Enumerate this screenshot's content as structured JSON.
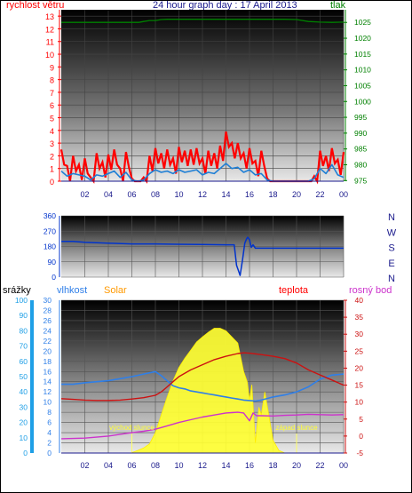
{
  "colors": {
    "wind_speed": "#ff0000",
    "wind_gust_avg": "#1e7fd6",
    "pressure": "#008000",
    "direction": "#0033cc",
    "rain": "#1e9fe6",
    "humidity": "#2f7fe8",
    "solar": "#ffff33",
    "temperature": "#cc1111",
    "dewpoint": "#cc33cc",
    "solar_label": "#ff9900",
    "title": "#1a1a8c"
  },
  "chart_data": [
    {
      "type": "line",
      "title": "24 hour graph day : 17 April 2013",
      "left_label": "rychlost větru",
      "right_label": "tlak",
      "x_ticks": [
        "02",
        "04",
        "06",
        "08",
        "10",
        "12",
        "14",
        "16",
        "18",
        "20",
        "22",
        "00"
      ],
      "left_ticks": [
        0,
        1,
        2,
        3,
        4,
        5,
        6,
        7,
        8,
        9,
        10,
        11,
        12,
        13
      ],
      "right_ticks": [
        975,
        980,
        985,
        990,
        995,
        1000,
        1005,
        1010,
        1015,
        1020,
        1025
      ],
      "ylim_left": [
        0,
        13.5
      ],
      "ylim_right": [
        974.8,
        1029
      ],
      "x_range_hours": [
        0,
        24
      ],
      "series": [
        {
          "key": "wind_speed",
          "hour": [
            0,
            0.5,
            1,
            1.5,
            2,
            2.5,
            3,
            3.5,
            4,
            4.5,
            5,
            5.5,
            6,
            6.5,
            7,
            7.5,
            8,
            8.5,
            9,
            9.5,
            10,
            10.5,
            11,
            11.5,
            12,
            12.5,
            13,
            13.5,
            14,
            14.5,
            15,
            15.5,
            16,
            16.5,
            17,
            17.5,
            18,
            18.5,
            19,
            19.5,
            20,
            20.5,
            21,
            21.5,
            22,
            22.5,
            23,
            23.5,
            24
          ],
          "values": [
            2.5,
            1.2,
            2.0,
            1.3,
            1.8,
            0.3,
            2.2,
            1.5,
            2.1,
            2.5,
            1.0,
            2.3,
            0.2,
            0,
            0.3,
            2.0,
            2.6,
            2.2,
            2.5,
            1.8,
            2.7,
            2.4,
            2.5,
            2.6,
            1.8,
            2.4,
            2.2,
            2.8,
            3.9,
            3.0,
            3.0,
            2.2,
            2.6,
            1.6,
            2.4,
            0.2,
            0,
            0,
            0,
            0,
            0,
            0,
            0,
            0.4,
            2.4,
            2.0,
            2.6,
            1.7,
            2.3
          ]
        },
        {
          "key": "wind_gust_avg",
          "hour": [
            0,
            0.5,
            1,
            1.5,
            2,
            2.5,
            3,
            3.5,
            4,
            4.5,
            5,
            5.5,
            6,
            6.5,
            7,
            7.5,
            8,
            8.5,
            9,
            9.5,
            10,
            10.5,
            11,
            11.5,
            12,
            12.5,
            13,
            13.5,
            14,
            14.5,
            15,
            15.5,
            16,
            16.5,
            17,
            17.5,
            18,
            18.5,
            19,
            19.5,
            20,
            20.5,
            21,
            21.5,
            22,
            22.5,
            23,
            23.5,
            24
          ],
          "values": [
            0.8,
            0.4,
            0.6,
            0.5,
            0.4,
            0.1,
            0.5,
            0.4,
            0.6,
            0.8,
            0.3,
            0.7,
            0.1,
            0,
            0.1,
            0.6,
            0.9,
            0.7,
            0.8,
            0.6,
            0.9,
            0.7,
            0.8,
            0.9,
            0.5,
            0.7,
            0.6,
            1.0,
            1.4,
            1.0,
            1.1,
            0.7,
            0.9,
            0.5,
            0.6,
            0.1,
            0,
            0,
            0,
            0,
            0,
            0,
            0,
            0.2,
            1.0,
            0.6,
            1.3,
            0.5,
            0.3
          ]
        },
        {
          "key": "pressure",
          "axis": "right",
          "hour": [
            0,
            1,
            2,
            3,
            4,
            5,
            6,
            6.6,
            7,
            7.5,
            8,
            8.5,
            9,
            10,
            11,
            12,
            13,
            14,
            15,
            16,
            17,
            18,
            19,
            20,
            21,
            22,
            23,
            24
          ],
          "values": [
            1025.0,
            1025.0,
            1025.0,
            1025.0,
            1025.0,
            1025.0,
            1025.0,
            1025.0,
            1025.3,
            1025.6,
            1025.6,
            1025.9,
            1026.0,
            1026.0,
            1026.0,
            1026.0,
            1026.0,
            1026.0,
            1026.0,
            1026.0,
            1026.0,
            1026.0,
            1026.0,
            1025.9,
            1025.3,
            1025.1,
            1025.0,
            1025.1
          ]
        }
      ]
    },
    {
      "type": "line",
      "right_labels": [
        "N",
        "W",
        "S",
        "E",
        "N"
      ],
      "left_ticks": [
        0,
        90,
        180,
        270,
        360
      ],
      "ylim": [
        0,
        360
      ],
      "series": [
        {
          "key": "direction",
          "hour": [
            0,
            1,
            2,
            4,
            6,
            8,
            10,
            12,
            14,
            14.7,
            14.9,
            15.1,
            15.2,
            15.4,
            15.6,
            15.75,
            15.85,
            16.0,
            16.15,
            16.3,
            16.5,
            18,
            20,
            22,
            24
          ],
          "values": [
            210,
            210,
            205,
            200,
            195,
            195,
            193,
            192,
            190,
            190,
            70,
            30,
            10,
            100,
            200,
            225,
            235,
            220,
            175,
            190,
            170,
            170,
            170,
            170,
            170
          ]
        }
      ]
    },
    {
      "type": "area",
      "labels": {
        "rain": "srážky",
        "humidity": "vlhkost",
        "solar": "Solar",
        "temperature": "teplota",
        "dewpoint": "rosný bod",
        "sunrise": "východ slunce",
        "sunset": "západ slunce"
      },
      "axis_ticks": {
        "rain": [
          0,
          10,
          20,
          30,
          40,
          50,
          60,
          70,
          80,
          90,
          100
        ],
        "humidity": [
          0,
          2,
          4,
          6,
          8,
          10,
          12,
          14,
          16,
          18,
          20,
          22,
          24,
          26,
          28,
          30
        ],
        "temperature": [
          -5,
          0,
          5,
          10,
          15,
          20,
          25,
          30,
          35,
          40
        ]
      },
      "ylim_humidity_axis": [
        0,
        30
      ],
      "ylim_temperature_axis": [
        -5,
        40
      ],
      "sunrise_hour": 6.0,
      "sunset_hour": 20.0,
      "series": [
        {
          "key": "humidity",
          "hour": [
            0,
            1,
            2,
            3,
            4,
            5,
            6,
            7,
            8,
            8.5,
            9,
            9.5,
            10,
            10.5,
            11,
            11.5,
            12,
            12.5,
            13,
            13.5,
            14,
            14.5,
            15,
            15.5,
            16,
            16.5,
            17,
            18,
            19,
            20,
            21,
            22,
            23,
            24
          ],
          "values": [
            13.5,
            13.5,
            13.8,
            14.0,
            14.2,
            14.6,
            15.0,
            15.5,
            16.0,
            15.2,
            14.2,
            13.2,
            12.8,
            12.6,
            12.2,
            12.0,
            11.8,
            11.6,
            11.4,
            11.2,
            11.0,
            10.8,
            10.6,
            10.4,
            10.3,
            10.2,
            10.4,
            11.0,
            11.4,
            12.0,
            13.0,
            14.5,
            15.3,
            15.5
          ]
        },
        {
          "key": "temperature",
          "hour": [
            0,
            1,
            2,
            3,
            4,
            5,
            6,
            7,
            8,
            8.5,
            9,
            9.5,
            10,
            11,
            12,
            13,
            14,
            15,
            15.5,
            16,
            17,
            18,
            19,
            20,
            21,
            22,
            23,
            24
          ],
          "values": [
            11.0,
            10.8,
            10.6,
            10.5,
            10.5,
            10.6,
            10.9,
            11.3,
            12.0,
            13.0,
            14.5,
            16.0,
            17.5,
            19.5,
            21.0,
            22.5,
            23.5,
            24.3,
            24.5,
            24.4,
            24.0,
            23.5,
            22.8,
            21.5,
            19.5,
            18.0,
            16.5,
            15.0
          ]
        },
        {
          "key": "dewpoint",
          "hour": [
            0,
            2,
            4,
            6,
            7,
            8,
            9,
            10,
            11,
            12,
            13,
            14,
            14.5,
            15,
            15.5,
            16,
            16.3,
            16.6,
            17,
            18,
            19,
            20,
            21,
            22,
            23,
            24
          ],
          "values": [
            -0.8,
            -0.6,
            0.0,
            1.0,
            1.4,
            2.0,
            3.0,
            4.0,
            4.8,
            5.6,
            6.2,
            6.8,
            6.9,
            7.0,
            6.8,
            4.5,
            6.8,
            6.0,
            6.0,
            5.9,
            6.1,
            6.2,
            6.4,
            6.3,
            6.2,
            6.3
          ]
        },
        {
          "key": "solar",
          "hour": [
            0,
            5.9,
            6.5,
            7,
            7.5,
            8,
            8.5,
            9,
            9.5,
            10,
            10.5,
            11,
            11.5,
            12,
            12.5,
            13,
            13.5,
            14,
            14.5,
            15,
            15.5,
            15.8,
            16,
            16.2,
            16.5,
            16.8,
            17,
            17.3,
            17.6,
            18,
            18.5,
            19,
            24
          ],
          "values": [
            0,
            0,
            0.5,
            1.0,
            1.8,
            4.0,
            7.5,
            11.0,
            14.2,
            16.8,
            18.6,
            20.2,
            21.8,
            22.8,
            23.7,
            24.5,
            24.5,
            24.0,
            22.8,
            21.6,
            16.0,
            14.0,
            10.5,
            13.4,
            2.0,
            9.0,
            7.5,
            12.0,
            8.0,
            2.5,
            0.5,
            0,
            0
          ]
        }
      ]
    }
  ]
}
